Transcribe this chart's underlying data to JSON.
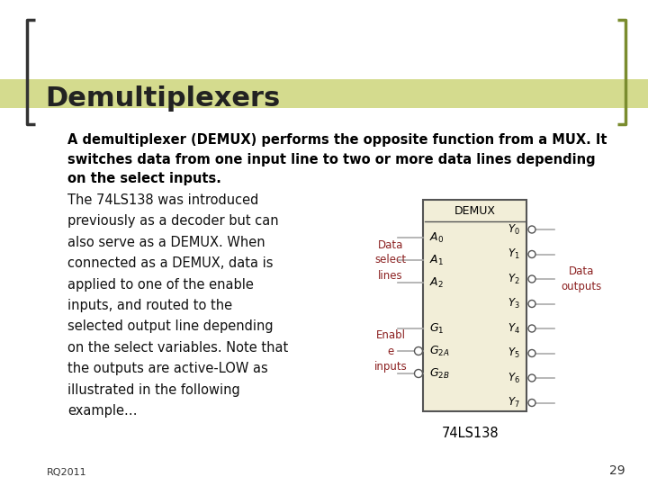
{
  "title": "Demultiplexers",
  "title_fontsize": 22,
  "title_color": "#222222",
  "title_font": "sans-serif",
  "bracket_color": "#7a8c2e",
  "highlight_bar_color": "#d4db8e",
  "body_text_1": "A demultiplexer (DEMUX) performs the opposite function from a MUX. It\nswitches data from one input line to two or more data lines depending\non the select inputs.",
  "body_text_2": "The 74LS138 was introduced\npreviously as a decoder but can\nalso serve as a DEMUX. When\nconnected as a DEMUX, data is\napplied to one of the enable\ninputs, and routed to the\nselected output line depending\non the select variables. Note that\nthe outputs are active-LOW as\nillustrated in the following\nexample…",
  "body_fontsize": 10.5,
  "body_font": "sans-serif",
  "red_label_color": "#8b2020",
  "chip_bg": "#f2eed8",
  "chip_border": "#555555",
  "chip_title": "DEMUX",
  "chip_label_74": "74LS138",
  "data_select_label": "Data\nselect\nlines",
  "enable_label": "Enabl\ne\ninputs",
  "data_outputs_label": "Data\noutputs",
  "page_number": "29",
  "footer_text": "RQ2011",
  "bg_color": "#ffffff",
  "wire_color": "#aaaaaa",
  "circle_color": "#888888"
}
